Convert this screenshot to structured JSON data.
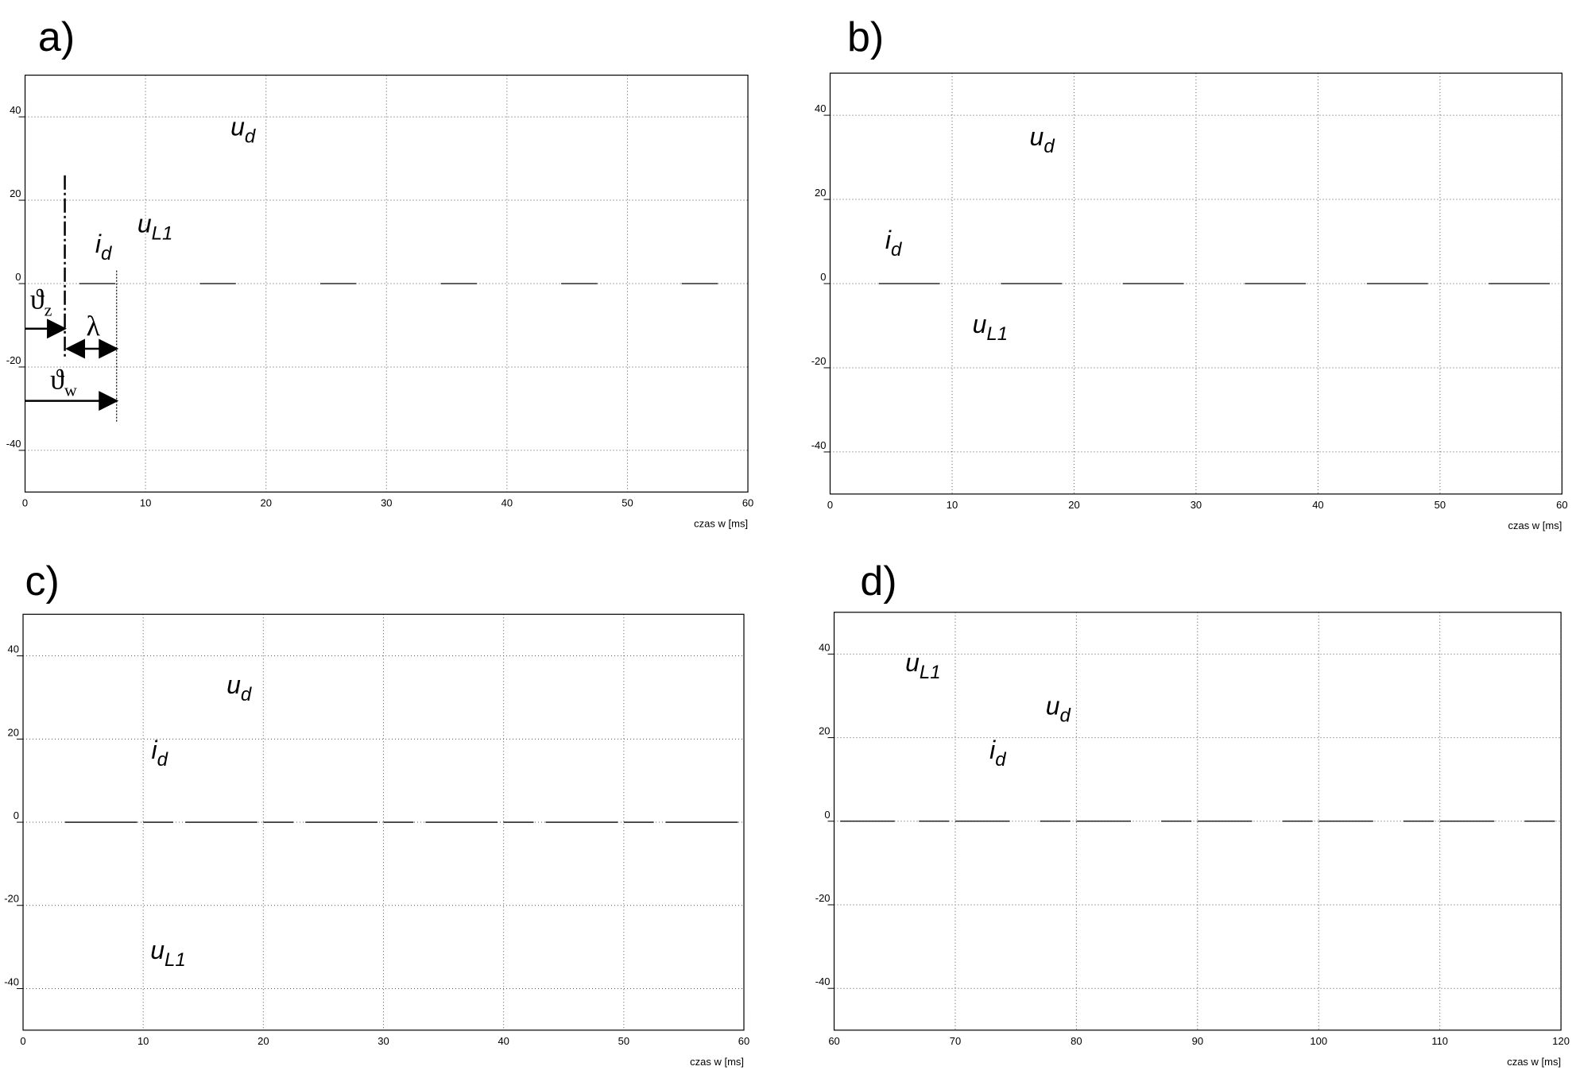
{
  "chart_data": [
    {
      "type": "line",
      "title": "a)",
      "xlabel": "czas w [ms]",
      "xlim": [
        0,
        60
      ],
      "ylim": [
        -50,
        50
      ],
      "xticks": [
        0,
        10,
        20,
        30,
        40,
        50,
        60
      ],
      "yticks": [
        -40,
        -20,
        0,
        20,
        40
      ],
      "grid": true,
      "series": [
        {
          "color": "#000000",
          "x": [
            4.5,
            7.5,
            10,
            14.5,
            17.5,
            20,
            24.5,
            27.5,
            30,
            34.5,
            37.5,
            40,
            44.5,
            47.5,
            50,
            54.5,
            57.5
          ],
          "values": [
            0,
            0,
            null,
            0,
            0,
            null,
            0,
            0,
            null,
            0,
            0,
            null,
            0,
            0,
            null,
            0,
            0
          ]
        }
      ],
      "annotations": [
        {
          "text": "u",
          "sub": "d"
        },
        {
          "text": "u",
          "sub": "L1"
        },
        {
          "text": "i",
          "sub": "d"
        },
        {
          "text": "ϑ",
          "sub": "z"
        },
        {
          "text": "λ"
        },
        {
          "text": "ϑ",
          "sub": "w"
        }
      ]
    },
    {
      "type": "line",
      "title": "b)",
      "xlabel": "czas w [ms]",
      "xlim": [
        0,
        60
      ],
      "ylim": [
        -50,
        50
      ],
      "xticks": [
        0,
        10,
        20,
        30,
        40,
        50,
        60
      ],
      "yticks": [
        -40,
        -20,
        0,
        20,
        40
      ],
      "grid": true,
      "series": [
        {
          "color": "#000000",
          "x": [
            4,
            9,
            10,
            14,
            19,
            20,
            24,
            29,
            30,
            34,
            39,
            40,
            44,
            49,
            50,
            54,
            59
          ],
          "values": [
            0,
            0,
            null,
            0,
            0,
            null,
            0,
            0,
            null,
            0,
            0,
            null,
            0,
            0,
            null,
            0,
            0
          ]
        }
      ],
      "annotations": [
        {
          "text": "u",
          "sub": "d"
        },
        {
          "text": "i",
          "sub": "d"
        },
        {
          "text": "u",
          "sub": "L1"
        }
      ]
    },
    {
      "type": "line",
      "title": "c)",
      "xlabel": "czas w [ms]",
      "xlim": [
        0,
        60
      ],
      "ylim": [
        -50,
        50
      ],
      "xticks": [
        0,
        10,
        20,
        30,
        40,
        50,
        60
      ],
      "yticks": [
        -40,
        -20,
        0,
        20,
        40
      ],
      "grid": true,
      "series": [
        {
          "color": "#000000",
          "x": [
            3.5,
            9.5,
            9.8,
            10,
            12.5,
            13,
            13.5,
            19.5,
            19.8,
            20,
            22.5,
            23,
            23.5,
            29.5,
            29.8,
            30,
            32.5,
            33,
            33.5,
            39.5,
            39.8,
            40,
            42.5,
            43,
            43.5,
            49.5,
            49.8,
            50,
            52.5,
            53,
            53.5,
            59.5
          ],
          "values": [
            0,
            0,
            null,
            0,
            0,
            null,
            0,
            0,
            null,
            0,
            0,
            null,
            0,
            0,
            null,
            0,
            0,
            null,
            0,
            0,
            null,
            0,
            0,
            null,
            0,
            0,
            null,
            0,
            0,
            null,
            0,
            0
          ]
        }
      ],
      "annotations": [
        {
          "text": "u",
          "sub": "d"
        },
        {
          "text": "i",
          "sub": "d"
        },
        {
          "text": "u",
          "sub": "L1"
        }
      ]
    },
    {
      "type": "line",
      "title": "d)",
      "xlabel": "czas w [ms]",
      "xlim": [
        60,
        120
      ],
      "ylim": [
        -50,
        50
      ],
      "xticks": [
        60,
        70,
        80,
        90,
        100,
        110,
        120
      ],
      "yticks": [
        -40,
        -20,
        0,
        20,
        40
      ],
      "grid": true,
      "series": [
        {
          "color": "#000000",
          "x": [
            60.5,
            65,
            66,
            67,
            69.5,
            69.8,
            70,
            74.5,
            76,
            77,
            79.5,
            79.8,
            80,
            84.5,
            86,
            87,
            89.5,
            89.8,
            90,
            94.5,
            96,
            97,
            99.5,
            99.8,
            100,
            104.5,
            106,
            107,
            109.5,
            109.8,
            110,
            114.5,
            116,
            117,
            119.5
          ],
          "values": [
            0,
            0,
            null,
            0,
            0,
            null,
            0,
            0,
            null,
            0,
            0,
            null,
            0,
            0,
            null,
            0,
            0,
            null,
            0,
            0,
            null,
            0,
            0,
            null,
            0,
            0,
            null,
            0,
            0,
            null,
            0,
            0,
            null,
            0,
            0
          ]
        }
      ],
      "annotations": [
        {
          "text": "u",
          "sub": "L1"
        },
        {
          "text": "u",
          "sub": "d"
        },
        {
          "text": "i",
          "sub": "d"
        }
      ]
    }
  ]
}
